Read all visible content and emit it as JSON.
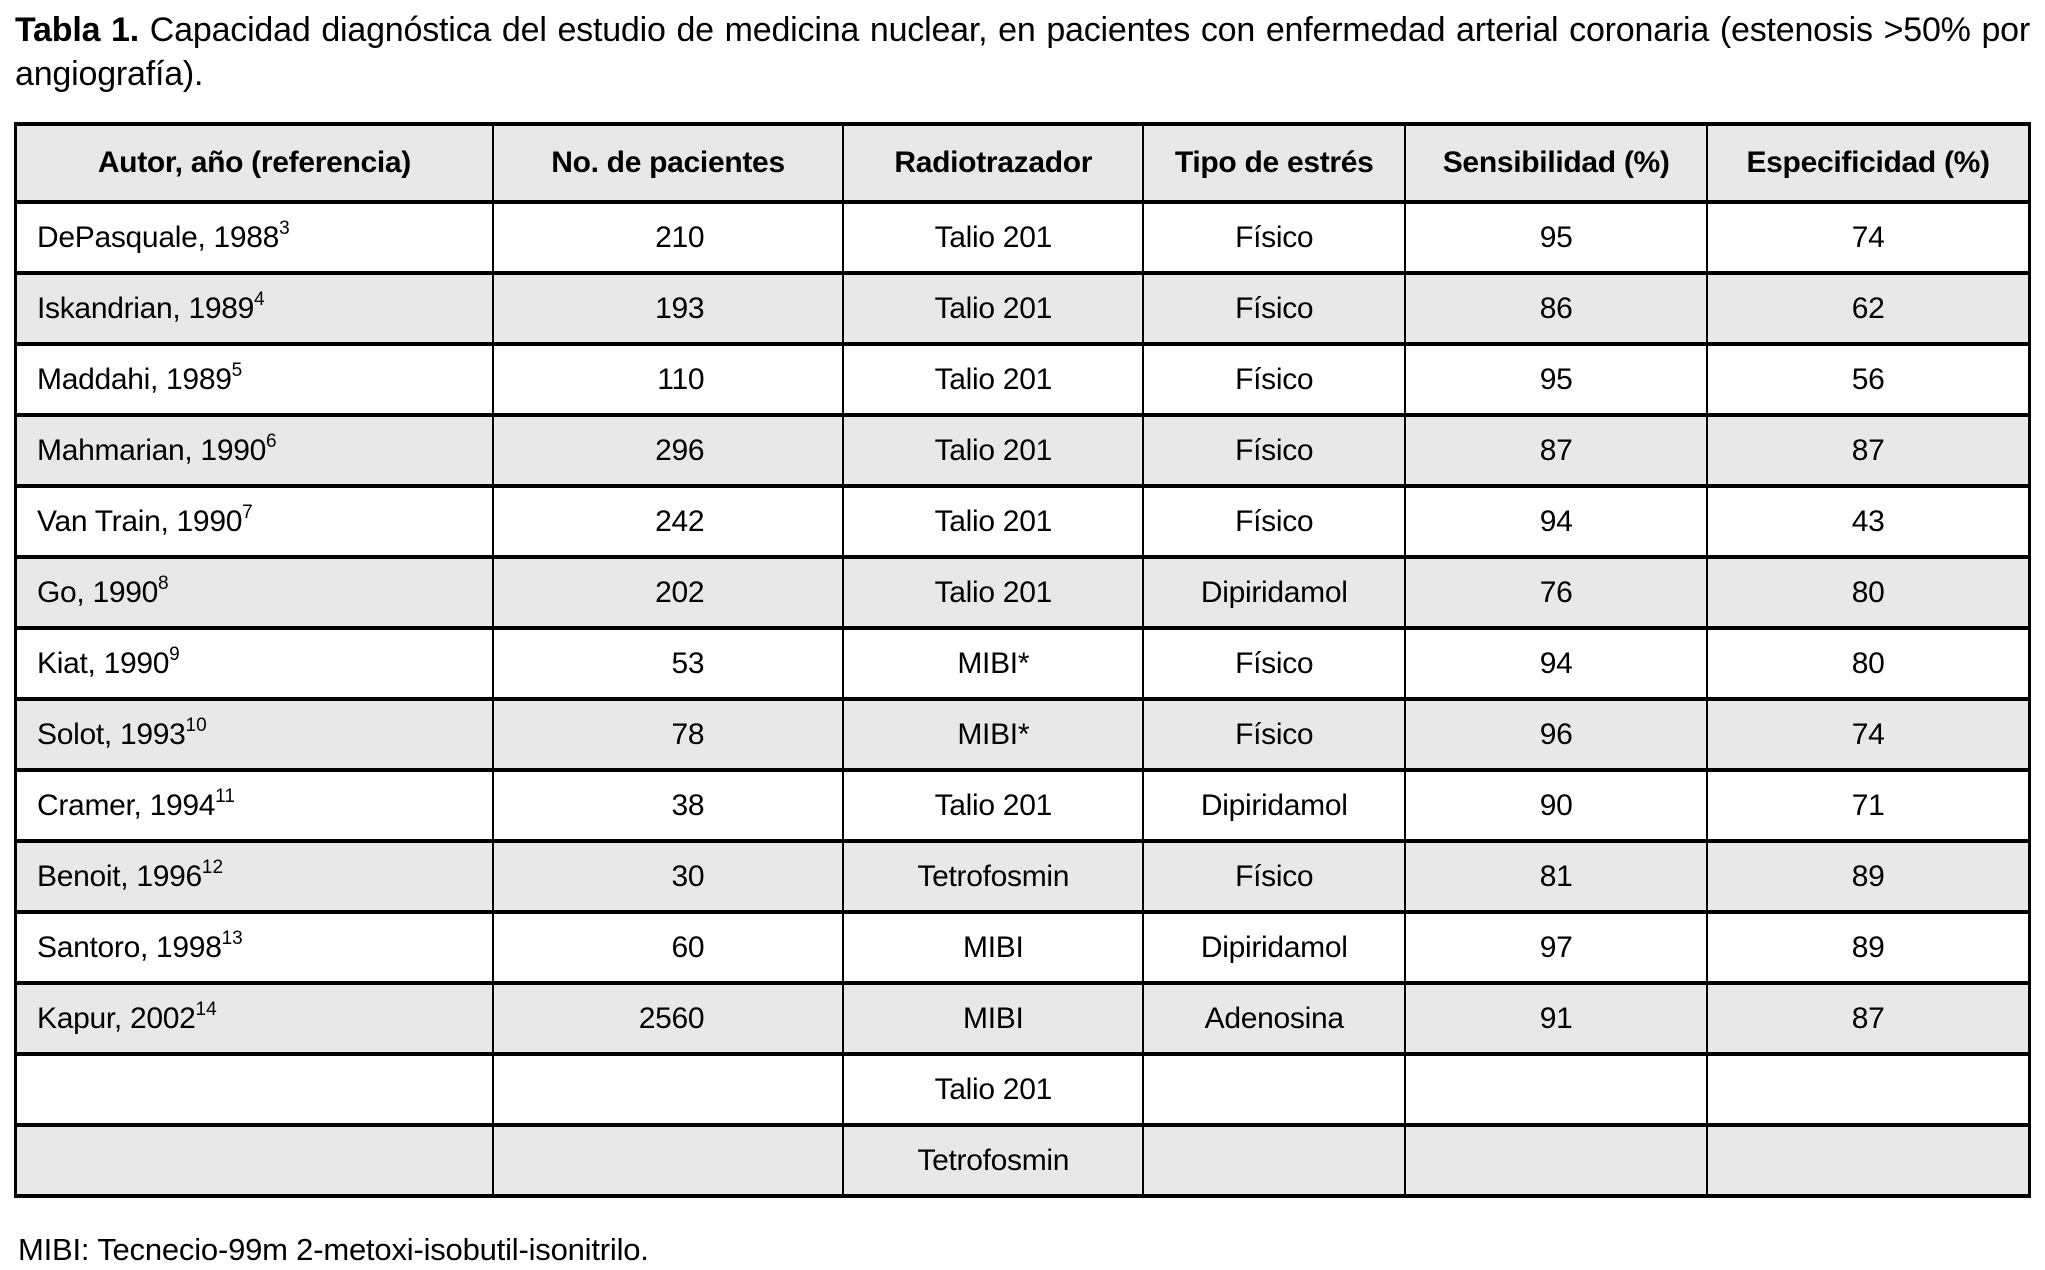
{
  "title": {
    "prefix": "Tabla 1.",
    "line1_rest": "Capacidad diagnóstica del estudio de medicina nuclear, en pacientes con enfermedad arterial coronaria (estenosis >50% por",
    "line2": "angiografía)."
  },
  "colors": {
    "row_shade": "#e8e8e8",
    "border": "#000000",
    "background": "#ffffff"
  },
  "table": {
    "columns": [
      "Autor, año (referencia)",
      "No. de pacientes",
      "Radiotrazador",
      "Tipo de estrés",
      "Sensibilidad (%)",
      "Especificidad (%)"
    ],
    "rows": [
      {
        "author": "DePasquale, 1988",
        "ref": "3",
        "patients": "210",
        "tracer": "Talio 201",
        "stress": "Físico",
        "sensitivity": "95",
        "specificity": "74"
      },
      {
        "author": "Iskandrian, 1989",
        "ref": "4",
        "patients": "193",
        "tracer": "Talio 201",
        "stress": "Físico",
        "sensitivity": "86",
        "specificity": "62"
      },
      {
        "author": "Maddahi, 1989",
        "ref": "5",
        "patients": "110",
        "tracer": "Talio 201",
        "stress": "Físico",
        "sensitivity": "95",
        "specificity": "56"
      },
      {
        "author": "Mahmarian, 1990",
        "ref": "6",
        "patients": "296",
        "tracer": "Talio 201",
        "stress": "Físico",
        "sensitivity": "87",
        "specificity": "87"
      },
      {
        "author": "Van Train, 1990",
        "ref": "7",
        "patients": "242",
        "tracer": "Talio 201",
        "stress": "Físico",
        "sensitivity": "94",
        "specificity": "43"
      },
      {
        "author": "Go, 1990",
        "ref": "8",
        "patients": "202",
        "tracer": "Talio 201",
        "stress": "Dipiridamol",
        "sensitivity": "76",
        "specificity": "80"
      },
      {
        "author": "Kiat, 1990",
        "ref": "9",
        "patients": "53",
        "tracer": "MIBI*",
        "stress": "Físico",
        "sensitivity": "94",
        "specificity": "80"
      },
      {
        "author": "Solot, 1993",
        "ref": "10",
        "patients": "78",
        "tracer": "MIBI*",
        "stress": "Físico",
        "sensitivity": "96",
        "specificity": "74"
      },
      {
        "author": "Cramer, 1994",
        "ref": "11",
        "patients": "38",
        "tracer": "Talio 201",
        "stress": "Dipiridamol",
        "sensitivity": "90",
        "specificity": "71"
      },
      {
        "author": "Benoit, 1996",
        "ref": "12",
        "patients": "30",
        "tracer": "Tetrofosmin",
        "stress": "Físico",
        "sensitivity": "81",
        "specificity": "89"
      },
      {
        "author": "Santoro, 1998",
        "ref": "13",
        "patients": "60",
        "tracer": "MIBI",
        "stress": "Dipiridamol",
        "sensitivity": "97",
        "specificity": "89"
      },
      {
        "author": "Kapur, 2002",
        "ref": "14",
        "patients": "2560",
        "tracer": "MIBI",
        "stress": "Adenosina",
        "sensitivity": "91",
        "specificity": "87"
      },
      {
        "author": "",
        "ref": "",
        "patients": "",
        "tracer": "Talio 201",
        "stress": "",
        "sensitivity": "",
        "specificity": ""
      },
      {
        "author": "",
        "ref": "",
        "patients": "",
        "tracer": "Tetrofosmin",
        "stress": "",
        "sensitivity": "",
        "specificity": ""
      }
    ]
  },
  "footnote": "MIBI: Tecnecio-99m 2-metoxi-isobutil-isonitrilo."
}
